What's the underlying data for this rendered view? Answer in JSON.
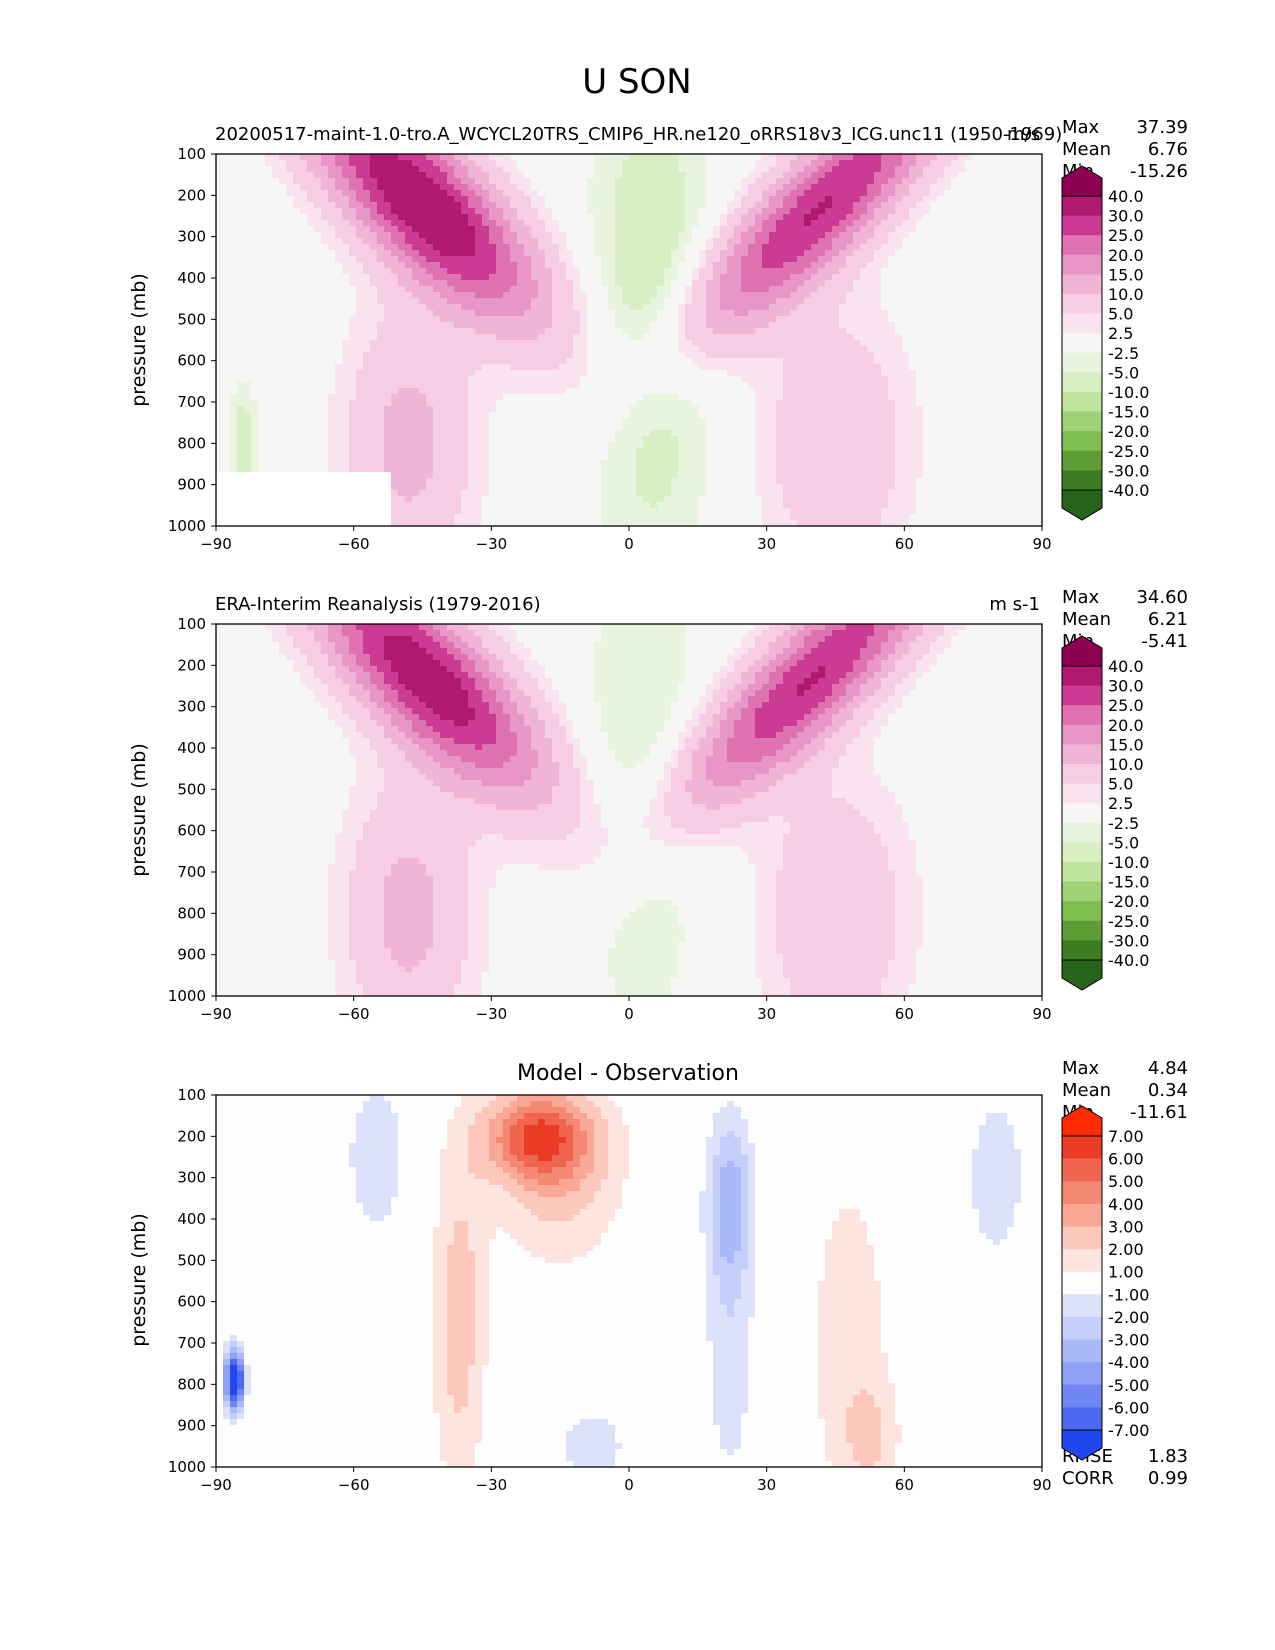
{
  "figure": {
    "title": "U SON",
    "colors": {
      "pos": [
        "#f6f6f4",
        "#f9e3ef",
        "#f6cde3",
        "#efb4d6",
        "#e896c6",
        "#df72b0",
        "#cc3b93",
        "#b11970",
        "#8e0152"
      ],
      "neg": [
        "#f6f6f4",
        "#e9f4df",
        "#d8efc3",
        "#bfe49d",
        "#9fd275",
        "#7ebd4f",
        "#5e9d35",
        "#3f7d23",
        "#276419"
      ],
      "diffPos": [
        "#fdfdfd",
        "#fde4de",
        "#fcc8bc",
        "#f9a896",
        "#f58873",
        "#f06550",
        "#ec3c25",
        "#ff2a00"
      ],
      "diffNeg": [
        "#fdfdfd",
        "#dce2fb",
        "#c4cffa",
        "#aab9f8",
        "#8ea1f5",
        "#6f86f3",
        "#4d69f1",
        "#2147ef"
      ]
    }
  },
  "chart_data": [
    {
      "type": "heatmap",
      "id": "model",
      "title_left": "20200517-maint-1.0-tro.A_WCYCL20TRS_CMIP6_HR.ne120_oRRS18v3_ICG.unc11 (1950-1969)",
      "title_right": "m/s",
      "xlabel": "",
      "ylabel": "pressure (mb)",
      "xlim": [
        -90,
        90
      ],
      "ylim": [
        1000,
        100
      ],
      "xticks": [
        "−90",
        "−60",
        "−30",
        "0",
        "30",
        "60",
        "90"
      ],
      "yticks": [
        "100",
        "200",
        "300",
        "400",
        "500",
        "600",
        "700",
        "800",
        "900",
        "1000"
      ],
      "stats": {
        "Max": "37.39",
        "Mean": "6.76",
        "Min": "-15.26"
      },
      "colorbar_levels": [
        "40.0",
        "30.0",
        "25.0",
        "20.0",
        "15.0",
        "10.0",
        "5.0",
        "2.5",
        "-2.5",
        "-5.0",
        "-10.0",
        "-15.0",
        "-20.0",
        "-25.0",
        "-30.0",
        "-40.0"
      ],
      "features": [
        {
          "lat": -45,
          "p": 220,
          "u": 36,
          "slat": 17,
          "sp": 290,
          "tilt": 0.07
        },
        {
          "lat": 42,
          "p": 230,
          "u": 30,
          "slat": 15,
          "sp": 330,
          "tilt": -0.08
        },
        {
          "lat": -48,
          "p": 800,
          "u": 12,
          "slat": 14,
          "sp": 320,
          "tilt": 0
        },
        {
          "lat": 45,
          "p": 800,
          "u": 10,
          "slat": 16,
          "sp": 320,
          "tilt": 0
        },
        {
          "lat": 5,
          "p": 500,
          "u": -9,
          "slat": 14,
          "sp": 600,
          "tilt": 0
        },
        {
          "lat": -85,
          "p": 800,
          "u": -8,
          "slat": 4,
          "sp": 150,
          "tilt": 0
        }
      ],
      "mask": {
        "lat0": -90,
        "lat1": -52,
        "p0": 865,
        "p1": 1000
      }
    },
    {
      "type": "heatmap",
      "id": "obs",
      "title_left": "ERA-Interim Reanalysis (1979-2016)",
      "title_right": "m s-1",
      "xlabel": "",
      "ylabel": "pressure (mb)",
      "xlim": [
        -90,
        90
      ],
      "ylim": [
        1000,
        100
      ],
      "xticks": [
        "−90",
        "−60",
        "−30",
        "0",
        "30",
        "60",
        "90"
      ],
      "yticks": [
        "100",
        "200",
        "300",
        "400",
        "500",
        "600",
        "700",
        "800",
        "900",
        "1000"
      ],
      "stats": {
        "Max": "34.60",
        "Mean": "6.21",
        "Min": "-5.41"
      },
      "colorbar_levels": [
        "40.0",
        "30.0",
        "25.0",
        "20.0",
        "15.0",
        "10.0",
        "5.0",
        "2.5",
        "-2.5",
        "-5.0",
        "-10.0",
        "-15.0",
        "-20.0",
        "-25.0",
        "-30.0",
        "-40.0"
      ],
      "features": [
        {
          "lat": -44,
          "p": 230,
          "u": 34,
          "slat": 17,
          "sp": 290,
          "tilt": 0.07
        },
        {
          "lat": 40,
          "p": 230,
          "u": 30,
          "slat": 15,
          "sp": 330,
          "tilt": -0.08
        },
        {
          "lat": -48,
          "p": 800,
          "u": 12,
          "slat": 14,
          "sp": 320,
          "tilt": 0
        },
        {
          "lat": 45,
          "p": 800,
          "u": 10,
          "slat": 16,
          "sp": 320,
          "tilt": 0
        },
        {
          "lat": 3,
          "p": 500,
          "u": -6,
          "slat": 14,
          "sp": 600,
          "tilt": 0
        }
      ]
    },
    {
      "type": "heatmap",
      "id": "diff",
      "title_center": "Model - Observation",
      "xlabel": "",
      "ylabel": "pressure (mb)",
      "xlim": [
        -90,
        90
      ],
      "ylim": [
        1000,
        100
      ],
      "xticks": [
        "−90",
        "−60",
        "−30",
        "0",
        "30",
        "60",
        "90"
      ],
      "yticks": [
        "100",
        "200",
        "300",
        "400",
        "500",
        "600",
        "700",
        "800",
        "900",
        "1000"
      ],
      "stats": {
        "Max": "4.84",
        "Mean": "0.34",
        "Min": "-11.61"
      },
      "metrics": {
        "RMSE": "1.83",
        "CORR": "0.99"
      },
      "colorbar_levels": [
        "7.00",
        "6.00",
        "5.00",
        "4.00",
        "3.00",
        "2.00",
        "1.00",
        "-1.00",
        "-2.00",
        "-3.00",
        "-4.00",
        "-5.00",
        "-6.00",
        "-7.00"
      ],
      "features": [
        {
          "lat": -20,
          "p": 200,
          "u": 5,
          "slat": 12,
          "sp": 110,
          "tilt": 0
        },
        {
          "lat": -37,
          "p": 650,
          "u": 2.6,
          "slat": 6,
          "sp": 420,
          "tilt": 0
        },
        {
          "lat": -15,
          "p": 300,
          "u": 2.4,
          "slat": 14,
          "sp": 220,
          "tilt": 0
        },
        {
          "lat": 48,
          "p": 700,
          "u": 1.6,
          "slat": 10,
          "sp": 480,
          "tilt": 0
        },
        {
          "lat": 53,
          "p": 930,
          "u": 1.5,
          "slat": 6,
          "sp": 130,
          "tilt": 0
        },
        {
          "lat": 22,
          "p": 350,
          "u": -3.2,
          "slat": 5,
          "sp": 200,
          "tilt": 0
        },
        {
          "lat": 22,
          "p": 700,
          "u": -1.6,
          "slat": 6,
          "sp": 400,
          "tilt": 0
        },
        {
          "lat": -55,
          "p": 250,
          "u": -1.8,
          "slat": 7,
          "sp": 200,
          "tilt": 0
        },
        {
          "lat": 80,
          "p": 300,
          "u": -1.5,
          "slat": 8,
          "sp": 250,
          "tilt": 0
        },
        {
          "lat": -8,
          "p": 950,
          "u": -1.4,
          "slat": 10,
          "sp": 120,
          "tilt": 0
        },
        {
          "lat": -86,
          "p": 790,
          "u": -10,
          "slat": 2,
          "sp": 70,
          "tilt": 0
        }
      ]
    }
  ]
}
